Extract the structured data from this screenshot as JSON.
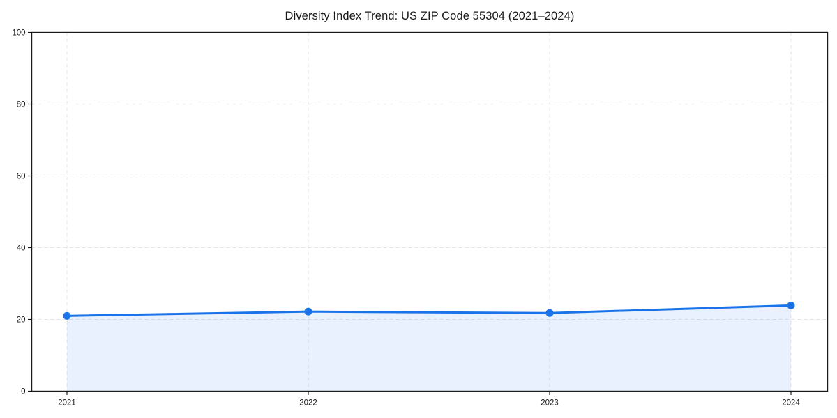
{
  "chart": {
    "title": "Diversity Index Trend: US ZIP Code 55304 (2021–2024)"
  },
  "chart_data": {
    "type": "area",
    "title": "Diversity Index Trend: US ZIP Code 55304 (2021–2024)",
    "series_name": "Diversity Index",
    "x": [
      2021,
      2022,
      2023,
      2024
    ],
    "values": [
      21,
      22.2,
      21.8,
      23.9
    ],
    "xlabel": "",
    "ylabel": "",
    "xticks": [
      2021,
      2022,
      2023,
      2024
    ],
    "yticks": [
      0,
      20,
      40,
      60,
      80,
      100
    ],
    "ylim": [
      0,
      100
    ],
    "grid": true,
    "grid_style": "dashed",
    "legend": "none",
    "colors": {
      "line": "#1a73e8",
      "marker": "#1a73e8",
      "area_fill": "#1a73e8",
      "area_opacity": 0.1,
      "grid": "#e4e4e4",
      "spine": "#1a1a1a",
      "text": "#1a1a1a",
      "background": "#ffffff"
    }
  }
}
